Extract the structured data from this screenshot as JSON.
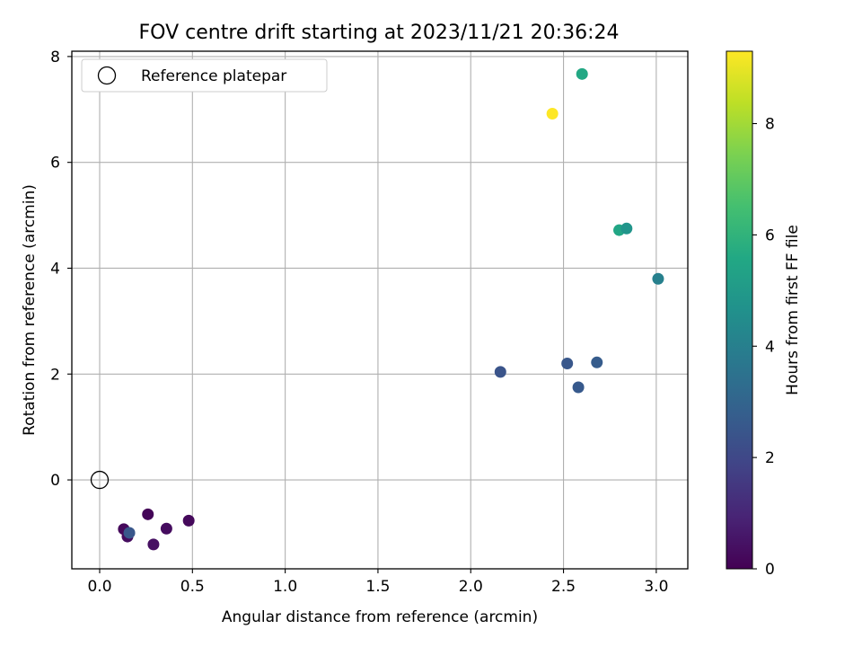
{
  "chart_data": {
    "type": "scatter",
    "title": "FOV centre drift starting at 2023/11/21 20:36:24",
    "xlabel": "Angular distance from reference (arcmin)",
    "ylabel": "Rotation from reference (arcmin)",
    "xlim": [
      -0.15,
      3.17
    ],
    "ylim": [
      -1.68,
      8.1
    ],
    "xticks": [
      0.0,
      0.5,
      1.0,
      1.5,
      2.0,
      2.5,
      3.0
    ],
    "xtick_labels": [
      "0.0",
      "0.5",
      "1.0",
      "1.5",
      "2.0",
      "2.5",
      "3.0"
    ],
    "yticks": [
      0,
      2,
      4,
      6,
      8
    ],
    "ytick_labels": [
      "0",
      "2",
      "4",
      "6",
      "8"
    ],
    "grid": true,
    "legend": {
      "placement": "top-left",
      "entries": [
        "Reference platepar"
      ]
    },
    "reference_point": {
      "x": 0.0,
      "y": 0.0,
      "label": "Reference platepar"
    },
    "colorbar": {
      "label": "Hours from first FF file",
      "colormap": "viridis",
      "range": [
        0,
        9.3
      ],
      "ticks": [
        0,
        2,
        4,
        6,
        8
      ],
      "tick_labels": [
        "0",
        "2",
        "4",
        "6",
        "8"
      ]
    },
    "points": [
      {
        "x": 0.13,
        "y": -0.93,
        "hours": 0.2
      },
      {
        "x": 0.15,
        "y": -1.07,
        "hours": 0.3
      },
      {
        "x": 0.26,
        "y": -0.65,
        "hours": 0.1
      },
      {
        "x": 0.29,
        "y": -1.22,
        "hours": 0.4
      },
      {
        "x": 0.36,
        "y": -0.92,
        "hours": 0.3
      },
      {
        "x": 0.48,
        "y": -0.77,
        "hours": 0.2
      },
      {
        "x": 0.16,
        "y": -1.0,
        "hours": 2.5
      },
      {
        "x": 2.16,
        "y": 2.04,
        "hours": 2.4
      },
      {
        "x": 2.52,
        "y": 2.2,
        "hours": 2.5
      },
      {
        "x": 2.58,
        "y": 1.75,
        "hours": 2.6
      },
      {
        "x": 2.68,
        "y": 2.22,
        "hours": 2.7
      },
      {
        "x": 3.01,
        "y": 3.8,
        "hours": 4.0
      },
      {
        "x": 2.8,
        "y": 4.72,
        "hours": 5.5
      },
      {
        "x": 2.84,
        "y": 4.75,
        "hours": 4.8
      },
      {
        "x": 2.6,
        "y": 7.67,
        "hours": 5.6
      },
      {
        "x": 2.44,
        "y": 6.92,
        "hours": 9.3
      }
    ]
  }
}
